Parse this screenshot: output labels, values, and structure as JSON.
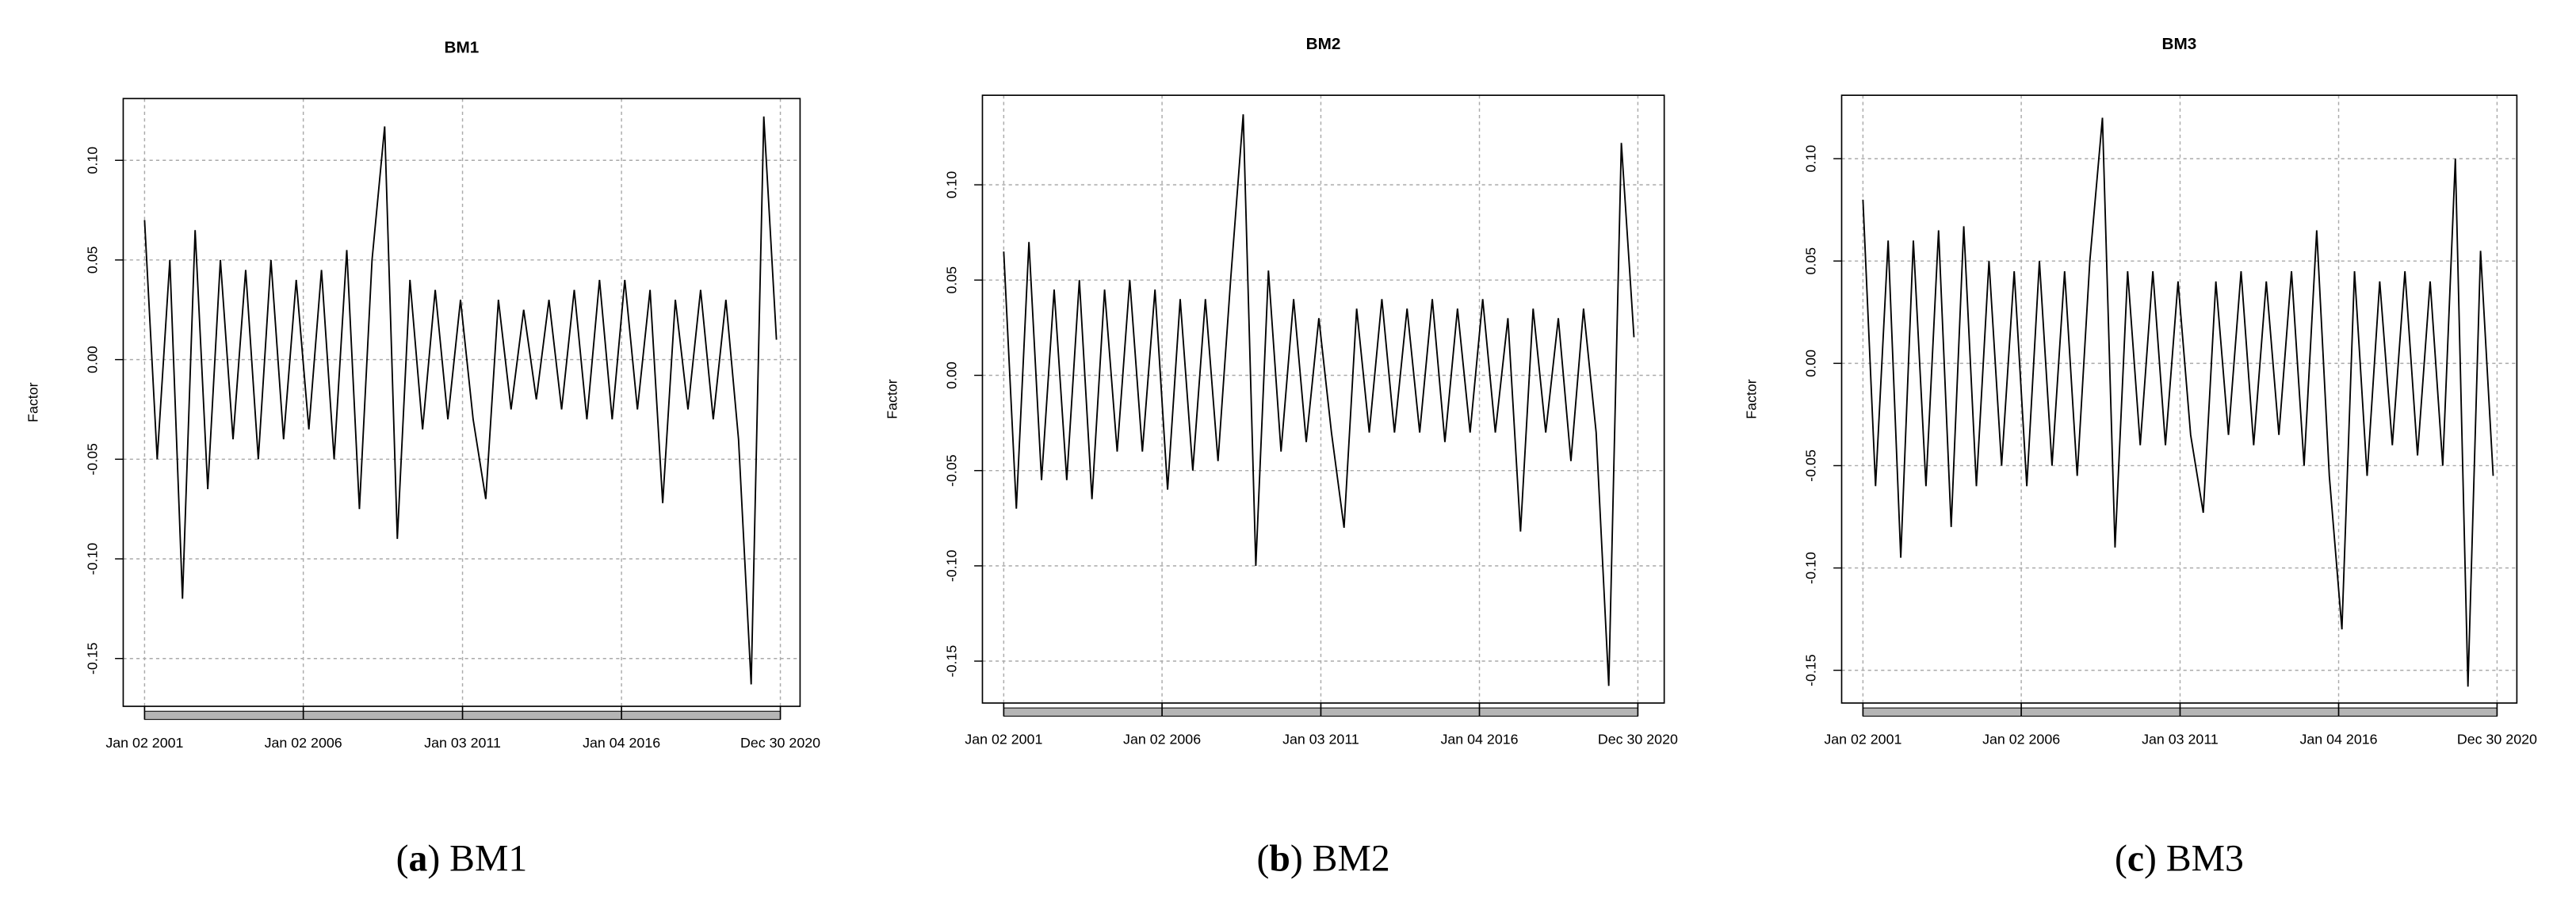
{
  "chart_data": [
    {
      "type": "line",
      "title": "BM1",
      "ylabel": "Factor",
      "color": "#000000",
      "grid": true,
      "x": [
        0,
        100,
        200,
        300,
        400,
        500,
        600,
        700,
        800,
        900,
        1000,
        1100,
        1200,
        1300,
        1400,
        1500,
        1600,
        1700,
        1800,
        1900,
        2000,
        2100,
        2200,
        2300,
        2400,
        2500,
        2600,
        2700,
        2800,
        2900,
        3000,
        3100,
        3200,
        3300,
        3400,
        3500,
        3600,
        3700,
        3800,
        3900,
        4000,
        4100,
        4200,
        4300,
        4400,
        4500,
        4600,
        4700,
        4800,
        4900,
        5000
      ],
      "values": [
        0.07,
        -0.05,
        0.05,
        -0.12,
        0.065,
        -0.065,
        0.05,
        -0.04,
        0.045,
        -0.05,
        0.05,
        -0.04,
        0.04,
        -0.035,
        0.045,
        -0.05,
        0.055,
        -0.075,
        0.05,
        0.117,
        -0.09,
        0.04,
        -0.035,
        0.035,
        -0.03,
        0.03,
        -0.03,
        -0.07,
        0.03,
        -0.025,
        0.025,
        -0.02,
        0.03,
        -0.025,
        0.035,
        -0.03,
        0.04,
        -0.03,
        0.04,
        -0.025,
        0.035,
        -0.072,
        0.03,
        -0.025,
        0.035,
        -0.03,
        0.03,
        -0.04,
        -0.163,
        0.122,
        0.01
      ],
      "xlim": [
        -169,
        5187
      ],
      "ylim": [
        -0.174,
        0.131
      ],
      "xticks": [
        {
          "value": 0,
          "label": "Jan 02 2001"
        },
        {
          "value": 1256,
          "label": "Jan 02 2006"
        },
        {
          "value": 2516,
          "label": "Jan 03 2011"
        },
        {
          "value": 3774,
          "label": "Jan 04 2016"
        },
        {
          "value": 5031,
          "label": "Dec 30 2020"
        }
      ],
      "yticks": [
        -0.15,
        {
          "value": -0.1,
          "label": "-0.10"
        },
        -0.05,
        {
          "value": 0,
          "label": "0.00"
        },
        0.05,
        {
          "value": 0.1,
          "label": "0.10"
        }
      ]
    },
    {
      "type": "line",
      "title": "BM2",
      "ylabel": "Factor",
      "color": "#000000",
      "grid": true,
      "x": [
        0,
        100,
        200,
        300,
        400,
        500,
        600,
        700,
        800,
        900,
        1000,
        1100,
        1200,
        1300,
        1400,
        1500,
        1600,
        1700,
        1800,
        1900,
        2000,
        2100,
        2200,
        2300,
        2400,
        2500,
        2600,
        2700,
        2800,
        2900,
        3000,
        3100,
        3200,
        3300,
        3400,
        3500,
        3600,
        3700,
        3800,
        3900,
        4000,
        4100,
        4200,
        4300,
        4400,
        4500,
        4600,
        4700,
        4800,
        4900,
        5000
      ],
      "values": [
        0.065,
        -0.07,
        0.07,
        -0.055,
        0.045,
        -0.055,
        0.05,
        -0.065,
        0.045,
        -0.04,
        0.05,
        -0.04,
        0.045,
        -0.06,
        0.04,
        -0.05,
        0.04,
        -0.045,
        0.05,
        0.137,
        -0.1,
        0.055,
        -0.04,
        0.04,
        -0.035,
        0.03,
        -0.03,
        -0.08,
        0.035,
        -0.03,
        0.04,
        -0.03,
        0.035,
        -0.03,
        0.04,
        -0.035,
        0.035,
        -0.03,
        0.04,
        -0.03,
        0.03,
        -0.082,
        0.035,
        -0.03,
        0.03,
        -0.045,
        0.035,
        -0.03,
        -0.163,
        0.122,
        0.02
      ],
      "xlim": [
        -169,
        5240
      ],
      "ylim": [
        -0.172,
        0.147
      ],
      "xticks": [
        {
          "value": 0,
          "label": "Jan 02 2001"
        },
        {
          "value": 1256,
          "label": "Jan 02 2006"
        },
        {
          "value": 2516,
          "label": "Jan 03 2011"
        },
        {
          "value": 3774,
          "label": "Jan 04 2016"
        },
        {
          "value": 5031,
          "label": "Dec 30 2020"
        }
      ],
      "yticks": [
        -0.15,
        {
          "value": -0.1,
          "label": "-0.10"
        },
        -0.05,
        {
          "value": 0,
          "label": "0.00"
        },
        0.05,
        {
          "value": 0.1,
          "label": "0.10"
        }
      ]
    },
    {
      "type": "line",
      "title": "BM3",
      "ylabel": "Factor",
      "color": "#000000",
      "grid": true,
      "x": [
        0,
        100,
        200,
        300,
        400,
        500,
        600,
        700,
        800,
        900,
        1000,
        1100,
        1200,
        1300,
        1400,
        1500,
        1600,
        1700,
        1800,
        1900,
        2000,
        2100,
        2200,
        2300,
        2400,
        2500,
        2600,
        2700,
        2800,
        2900,
        3000,
        3100,
        3200,
        3300,
        3400,
        3500,
        3600,
        3700,
        3800,
        3900,
        4000,
        4100,
        4200,
        4300,
        4400,
        4500,
        4600,
        4700,
        4800,
        4900,
        5000
      ],
      "values": [
        0.08,
        -0.06,
        0.06,
        -0.095,
        0.06,
        -0.06,
        0.065,
        -0.08,
        0.067,
        -0.06,
        0.05,
        -0.05,
        0.045,
        -0.06,
        0.05,
        -0.05,
        0.045,
        -0.055,
        0.05,
        0.12,
        -0.09,
        0.045,
        -0.04,
        0.045,
        -0.04,
        0.04,
        -0.035,
        -0.073,
        0.04,
        -0.035,
        0.045,
        -0.04,
        0.04,
        -0.035,
        0.045,
        -0.05,
        0.065,
        -0.055,
        -0.13,
        0.045,
        -0.055,
        0.04,
        -0.04,
        0.045,
        -0.045,
        0.04,
        -0.05,
        0.1,
        -0.158,
        0.055,
        -0.055
      ],
      "xlim": [
        -169,
        5188
      ],
      "ylim": [
        -0.166,
        0.131
      ],
      "xticks": [
        {
          "value": 0,
          "label": "Jan 02 2001"
        },
        {
          "value": 1256,
          "label": "Jan 02 2006"
        },
        {
          "value": 2516,
          "label": "Jan 03 2011"
        },
        {
          "value": 3774,
          "label": "Jan 04 2016"
        },
        {
          "value": 5031,
          "label": "Dec 30 2020"
        }
      ],
      "yticks": [
        -0.15,
        {
          "value": -0.1,
          "label": "-0.10"
        },
        -0.05,
        {
          "value": 0,
          "label": "0.00"
        },
        0.05,
        {
          "value": 0.1,
          "label": "0.10"
        }
      ]
    }
  ],
  "captions": [
    {
      "letter": "a",
      "text": "BM1"
    },
    {
      "letter": "b",
      "text": "BM2"
    },
    {
      "letter": "c",
      "text": "BM3"
    }
  ]
}
